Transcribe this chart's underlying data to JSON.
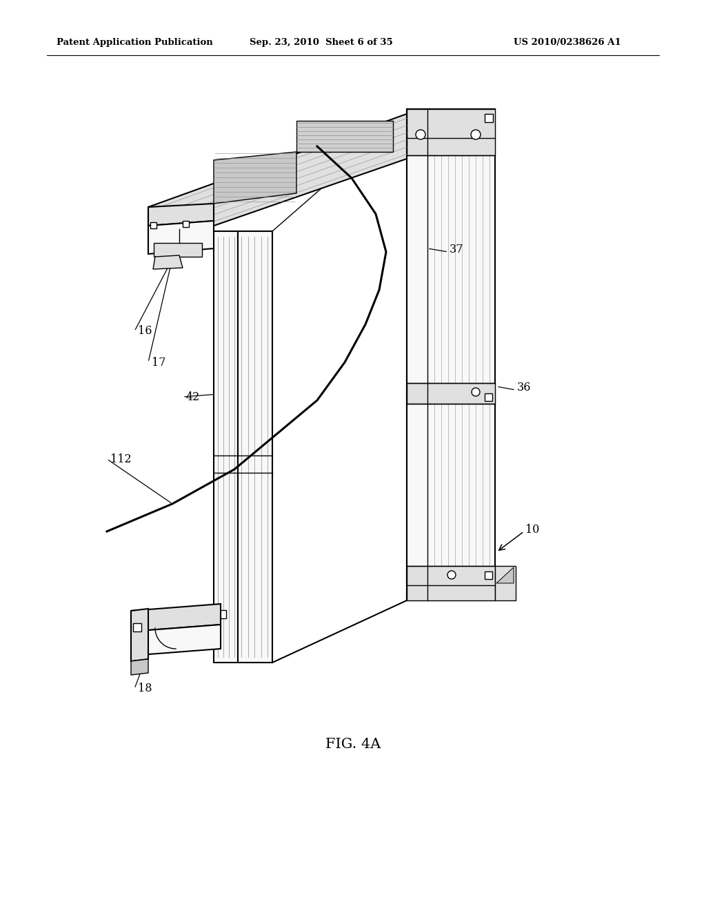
{
  "background_color": "#ffffff",
  "header_left": "Patent Application Publication",
  "header_mid": "Sep. 23, 2010  Sheet 6 of 35",
  "header_right": "US 2010/0238626 A1",
  "figure_label": "FIG. 4A",
  "line_color": "#000000",
  "face_color": "#f8f8f8",
  "shade_color": "#e0e0e0",
  "dark_shade": "#c8c8c8",
  "groove_color": "#aaaaaa",
  "hatch_color": "#888888"
}
